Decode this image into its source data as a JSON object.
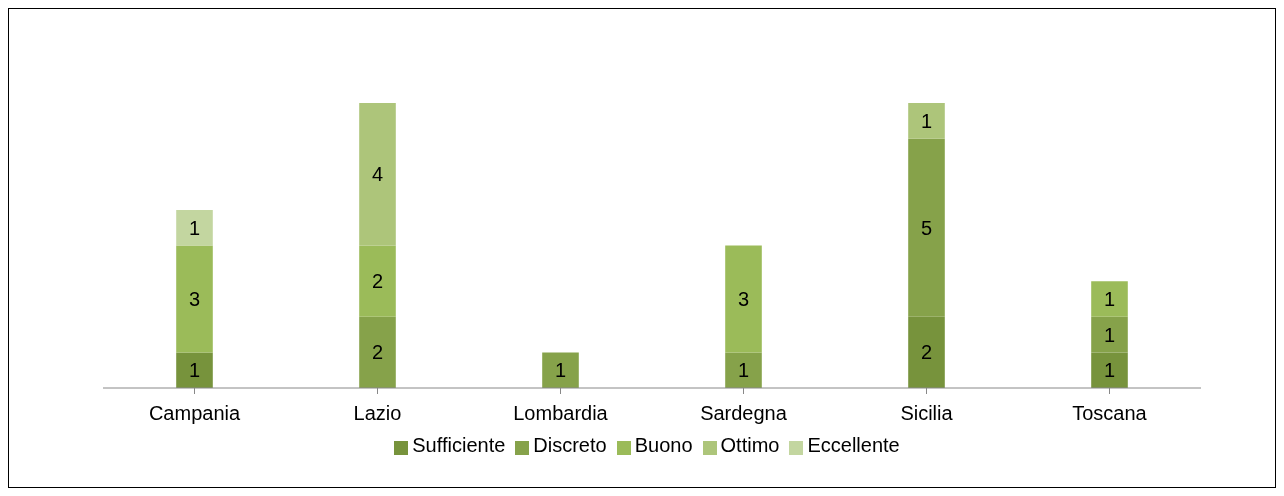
{
  "chart_data": {
    "type": "bar",
    "stacked": true,
    "data_labels": true,
    "legend": "bottom",
    "grid": false,
    "categories": [
      "Campania",
      "Lazio",
      "Lombardia",
      "Sardegna",
      "Sicilia",
      "Toscana"
    ],
    "series": [
      {
        "name": "Sufficiente",
        "color": "#77933c",
        "values": [
          1,
          null,
          null,
          null,
          2,
          1
        ]
      },
      {
        "name": "Discreto",
        "color": "#86a24a",
        "values": [
          null,
          2,
          1,
          1,
          5,
          1
        ]
      },
      {
        "name": "Buono",
        "color": "#9bbb59",
        "values": [
          3,
          2,
          null,
          3,
          null,
          1
        ]
      },
      {
        "name": "Ottimo",
        "color": "#adc57a",
        "values": [
          null,
          4,
          null,
          null,
          1,
          null
        ]
      },
      {
        "name": "Eccellente",
        "color": "#c3d6a0",
        "values": [
          1,
          null,
          null,
          null,
          null,
          null
        ]
      }
    ]
  }
}
